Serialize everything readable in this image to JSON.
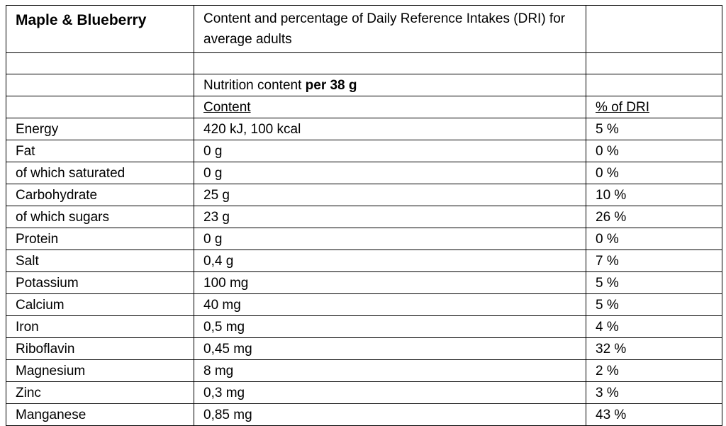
{
  "product_name": "Maple & Blueberry",
  "header_description": "Content and percentage of Daily Reference Intakes (DRI) for average adults",
  "nutrition_prefix": "Nutrition content ",
  "nutrition_suffix": "per 38 g",
  "columns": {
    "content": "Content",
    "dri": "% of DRI"
  },
  "rows": [
    {
      "nutrient": "Energy",
      "content": "420 kJ, 100 kcal",
      "dri": "5 %"
    },
    {
      "nutrient": "Fat",
      "content": "0 g",
      "dri": "0 %"
    },
    {
      "nutrient": "of which saturated",
      "content": "0 g",
      "dri": "0 %"
    },
    {
      "nutrient": "Carbohydrate",
      "content": "25 g",
      "dri": "10 %"
    },
    {
      "nutrient": "of which sugars",
      "content": "23 g",
      "dri": "26 %"
    },
    {
      "nutrient": "Protein",
      "content": "0 g",
      "dri": "0 %"
    },
    {
      "nutrient": "Salt",
      "content": "0,4 g",
      "dri": "7 %"
    },
    {
      "nutrient": "Potassium",
      "content": "100 mg",
      "dri": "5 %"
    },
    {
      "nutrient": "Calcium",
      "content": "40 mg",
      "dri": "5 %"
    },
    {
      "nutrient": "Iron",
      "content": "0,5 mg",
      "dri": "4 %"
    },
    {
      "nutrient": "Riboflavin",
      "content": "0,45 mg",
      "dri": "32 %"
    },
    {
      "nutrient": "Magnesium",
      "content": "8 mg",
      "dri": "2 %"
    },
    {
      "nutrient": "Zinc",
      "content": "0,3 mg",
      "dri": "3 %"
    },
    {
      "nutrient": "Manganese",
      "content": "0,85 mg",
      "dri": "43 %"
    }
  ]
}
